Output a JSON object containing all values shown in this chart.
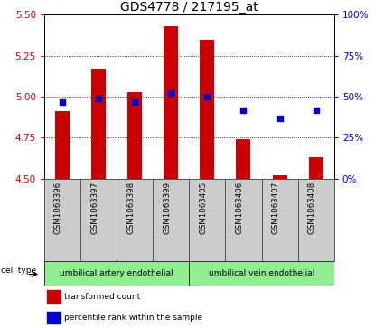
{
  "title": "GDS4778 / 217195_at",
  "samples": [
    "GSM1063396",
    "GSM1063397",
    "GSM1063398",
    "GSM1063399",
    "GSM1063405",
    "GSM1063406",
    "GSM1063407",
    "GSM1063408"
  ],
  "red_values": [
    4.91,
    5.17,
    5.03,
    5.43,
    5.35,
    4.74,
    4.52,
    4.63
  ],
  "blue_values": [
    47,
    49,
    47,
    52,
    50,
    42,
    37,
    42
  ],
  "ylim_left": [
    4.5,
    5.5
  ],
  "ylim_right": [
    0,
    100
  ],
  "yticks_left": [
    4.5,
    4.75,
    5.0,
    5.25,
    5.5
  ],
  "yticks_right": [
    0,
    25,
    50,
    75,
    100
  ],
  "ytick_labels_right": [
    "0%",
    "25%",
    "50%",
    "75%",
    "100%"
  ],
  "bar_color": "#cc0000",
  "dot_color": "#0000cc",
  "bar_width": 0.4,
  "baseline": 4.5,
  "cell_types": [
    "umbilical artery endothelial",
    "umbilical vein endothelial"
  ],
  "legend_red": "transformed count",
  "legend_blue": "percentile rank within the sample",
  "cell_type_label": "cell type",
  "tick_label_color_left": "#cc0000",
  "tick_label_color_right": "#0000cc",
  "title_fontsize": 10,
  "tick_fontsize": 7.5,
  "label_fontsize": 7
}
